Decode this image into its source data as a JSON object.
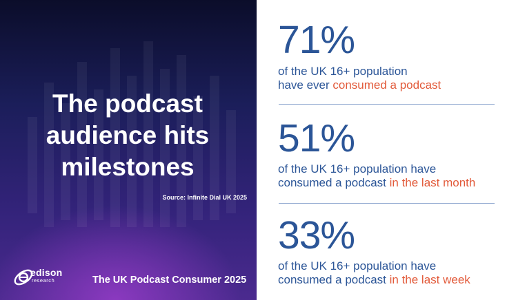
{
  "left": {
    "headline_line1": "The podcast",
    "headline_line2": "audience hits",
    "headline_line3": "milestones",
    "source": "Source: Infinite Dial UK 2025",
    "logo_name": "edison",
    "logo_sub": "research",
    "footer_title": "The UK Podcast Consumer 2025"
  },
  "stats": [
    {
      "value": "71%",
      "desc_line1": "of the UK 16+ population",
      "desc_pre": "have ever ",
      "desc_highlight": "consumed a podcast"
    },
    {
      "value": "51%",
      "desc_line1": "of the UK 16+ population have",
      "desc_pre": "consumed a podcast ",
      "desc_highlight": "in the last month"
    },
    {
      "value": "33%",
      "desc_line1": "of the UK 16+ population have",
      "desc_pre": "consumed a podcast ",
      "desc_highlight": "in the last week"
    }
  ],
  "colors": {
    "stat_blue": "#2b5597",
    "highlight_orange": "#e25a3a",
    "panel_dark": "#1b1e5a",
    "panel_purple": "#4b2a8f"
  },
  "icons": [
    "edison-logo-icon"
  ]
}
